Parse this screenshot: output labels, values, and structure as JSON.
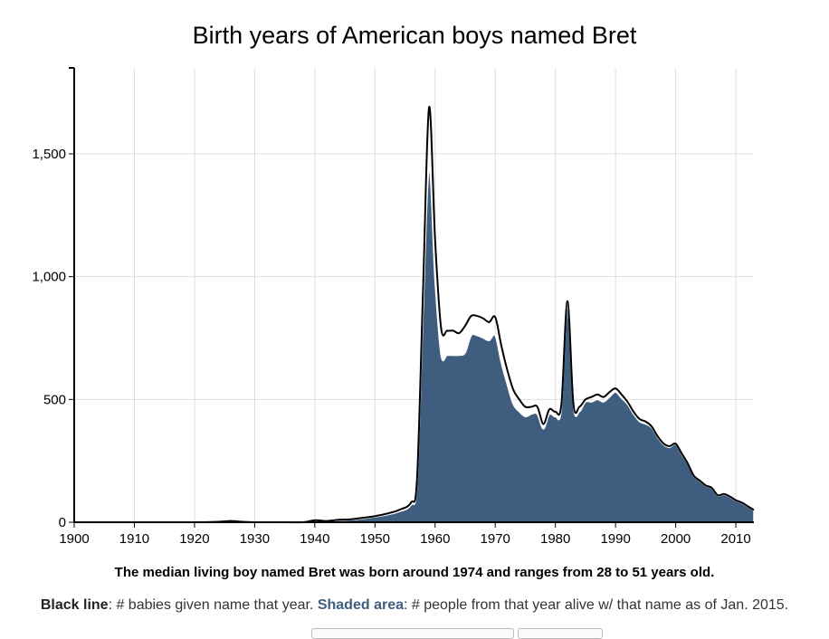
{
  "chart_data": {
    "type": "area",
    "title": "Birth years of American boys named Bret",
    "xlabel": "",
    "ylabel": "",
    "xlim": [
      1900,
      2013
    ],
    "ylim": [
      0,
      1850
    ],
    "x_ticks": [
      1900,
      1910,
      1920,
      1930,
      1940,
      1950,
      1960,
      1970,
      1980,
      1990,
      2000,
      2010
    ],
    "x_tick_labels": [
      "1900",
      "1910",
      "1920",
      "1930",
      "1940",
      "1950",
      "1960",
      "1970",
      "1980",
      "1990",
      "2000",
      "2010"
    ],
    "y_ticks": [
      0,
      500,
      1000,
      1500
    ],
    "y_tick_labels": [
      "0",
      "500",
      "1,000",
      "1,500"
    ],
    "grid": true,
    "colors": {
      "line": "#000000",
      "area": "#3f5e7f",
      "grid": "#dddddd"
    },
    "x": [
      1900,
      1905,
      1910,
      1915,
      1920,
      1924,
      1926,
      1928,
      1930,
      1935,
      1938,
      1940,
      1942,
      1944,
      1946,
      1948,
      1950,
      1952,
      1954,
      1956,
      1957,
      1958,
      1959,
      1960,
      1961,
      1962,
      1963,
      1964,
      1965,
      1966,
      1967,
      1968,
      1969,
      1970,
      1971,
      1972,
      1973,
      1974,
      1975,
      1976,
      1977,
      1978,
      1979,
      1980,
      1981,
      1982,
      1983,
      1984,
      1985,
      1986,
      1987,
      1988,
      1989,
      1990,
      1991,
      1992,
      1993,
      1994,
      1995,
      1996,
      1997,
      1998,
      1999,
      2000,
      2001,
      2002,
      2003,
      2004,
      2005,
      2006,
      2007,
      2008,
      2009,
      2010,
      2011,
      2012,
      2013
    ],
    "series": [
      {
        "type": "line",
        "values": [
          0,
          0,
          0,
          0,
          0,
          2,
          5,
          2,
          0,
          0,
          0,
          8,
          5,
          10,
          12,
          18,
          25,
          35,
          50,
          80,
          180,
          950,
          1690,
          1150,
          790,
          780,
          780,
          770,
          800,
          840,
          840,
          830,
          815,
          835,
          720,
          620,
          540,
          500,
          470,
          470,
          470,
          400,
          460,
          450,
          480,
          900,
          480,
          470,
          500,
          510,
          520,
          510,
          530,
          545,
          520,
          490,
          450,
          420,
          410,
          390,
          350,
          320,
          310,
          320,
          280,
          240,
          190,
          170,
          150,
          140,
          110,
          115,
          105,
          90,
          80,
          65,
          50
        ]
      },
      {
        "type": "area",
        "values": [
          0,
          0,
          0,
          0,
          0,
          1,
          3,
          1,
          0,
          0,
          0,
          6,
          4,
          8,
          10,
          15,
          22,
          30,
          43,
          70,
          160,
          850,
          1440,
          980,
          680,
          680,
          680,
          680,
          690,
          760,
          760,
          750,
          740,
          760,
          650,
          560,
          480,
          450,
          430,
          440,
          440,
          380,
          440,
          430,
          460,
          880,
          470,
          450,
          490,
          490,
          500,
          490,
          510,
          530,
          505,
          480,
          440,
          410,
          400,
          385,
          345,
          315,
          305,
          318,
          276,
          238,
          188,
          168,
          148,
          138,
          108,
          113,
          103,
          88,
          78,
          63,
          48
        ]
      }
    ],
    "annotations": {
      "median": "The median living boy named Bret was born around 1974 and ranges from 28 to 51 years old.",
      "legend_black_label": "Black line",
      "legend_black_text": ": # babies given name that year. ",
      "legend_shade_label": "Shaded area",
      "legend_shade_text": ": # people from that year alive w/ that name as of Jan. 2015."
    }
  }
}
